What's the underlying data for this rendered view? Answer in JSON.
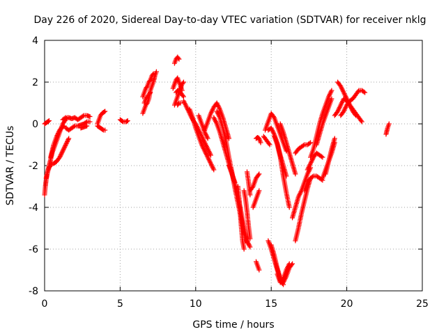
{
  "chart_data": {
    "type": "scatter",
    "title": "Day 226 of 2020, Sidereal Day-to-day VTEC variation (SDTVAR) for receiver nklg",
    "xlabel": "GPS time / hours",
    "ylabel": "SDTVAR / TECUs",
    "xlim": [
      0,
      25
    ],
    "ylim": [
      -8,
      4
    ],
    "xticks": [
      0,
      5,
      10,
      15,
      20,
      25
    ],
    "yticks": [
      -8,
      -6,
      -4,
      -2,
      0,
      2,
      4
    ],
    "xtick_labels": [
      "0",
      "5",
      "10",
      "15",
      "20",
      "25"
    ],
    "ytick_labels": [
      "-8",
      "-6",
      "-4",
      "-2",
      "0",
      "2",
      "4"
    ],
    "grid": true,
    "marker": "plus",
    "color": "#ff0000",
    "segments": [
      [
        [
          0.0,
          0.0
        ],
        [
          0.1,
          0.05
        ],
        [
          0.2,
          0.1
        ],
        [
          0.3,
          0.15
        ]
      ],
      [
        [
          0.0,
          -3.4
        ],
        [
          0.05,
          -3.0
        ],
        [
          0.1,
          -2.7
        ],
        [
          0.15,
          -2.5
        ],
        [
          0.2,
          -2.3
        ],
        [
          0.3,
          -2.0
        ],
        [
          0.4,
          -1.7
        ],
        [
          0.5,
          -1.4
        ],
        [
          0.6,
          -1.2
        ],
        [
          0.7,
          -1.0
        ],
        [
          0.8,
          -0.8
        ],
        [
          0.9,
          -0.6
        ],
        [
          1.0,
          -0.4
        ],
        [
          1.1,
          -0.2
        ],
        [
          1.2,
          0.0
        ],
        [
          1.3,
          0.1
        ],
        [
          1.4,
          0.2
        ],
        [
          1.5,
          0.3
        ]
      ],
      [
        [
          0.1,
          -2.6
        ],
        [
          0.2,
          -2.3
        ],
        [
          0.3,
          -2.1
        ],
        [
          0.4,
          -2.0
        ],
        [
          0.5,
          -1.9
        ],
        [
          0.6,
          -1.9
        ],
        [
          0.7,
          -1.85
        ],
        [
          0.8,
          -1.8
        ],
        [
          0.9,
          -1.7
        ],
        [
          1.0,
          -1.6
        ],
        [
          1.1,
          -1.45
        ],
        [
          1.2,
          -1.3
        ],
        [
          1.3,
          -1.15
        ],
        [
          1.4,
          -1.0
        ],
        [
          1.5,
          -0.85
        ],
        [
          1.6,
          -0.7
        ]
      ],
      [
        [
          0.4,
          -1.6
        ],
        [
          0.5,
          -1.3
        ],
        [
          0.6,
          -1.0
        ],
        [
          0.7,
          -0.8
        ],
        [
          0.8,
          -0.6
        ],
        [
          0.9,
          -0.45
        ],
        [
          1.0,
          -0.3
        ],
        [
          1.1,
          -0.2
        ],
        [
          1.2,
          -0.15
        ],
        [
          1.3,
          -0.1
        ]
      ],
      [
        [
          1.2,
          0.2
        ],
        [
          1.4,
          0.3
        ],
        [
          1.6,
          0.3
        ],
        [
          1.8,
          0.25
        ],
        [
          2.0,
          0.3
        ],
        [
          2.2,
          0.2
        ],
        [
          2.4,
          0.3
        ],
        [
          2.6,
          0.4
        ],
        [
          2.8,
          0.4
        ],
        [
          3.0,
          0.35
        ]
      ],
      [
        [
          1.4,
          -0.2
        ],
        [
          1.6,
          -0.3
        ],
        [
          1.8,
          -0.2
        ],
        [
          2.0,
          -0.1
        ],
        [
          2.2,
          -0.1
        ],
        [
          2.4,
          -0.05
        ],
        [
          2.6,
          0.0
        ],
        [
          2.8,
          0.1
        ],
        [
          3.0,
          0.1
        ]
      ],
      [
        [
          2.4,
          -0.2
        ],
        [
          2.6,
          -0.15
        ],
        [
          2.8,
          -0.1
        ]
      ],
      [
        [
          3.5,
          0.0
        ],
        [
          3.6,
          0.2
        ],
        [
          3.7,
          0.4
        ],
        [
          3.8,
          0.5
        ],
        [
          3.9,
          0.55
        ],
        [
          4.0,
          0.6
        ]
      ],
      [
        [
          3.5,
          -0.1
        ],
        [
          3.6,
          -0.15
        ],
        [
          3.7,
          -0.2
        ],
        [
          3.8,
          -0.25
        ],
        [
          3.9,
          -0.3
        ],
        [
          4.0,
          -0.3
        ]
      ],
      [
        [
          5.0,
          0.2
        ],
        [
          5.1,
          0.15
        ],
        [
          5.2,
          0.1
        ],
        [
          5.3,
          0.1
        ],
        [
          5.4,
          0.1
        ],
        [
          5.5,
          0.15
        ]
      ],
      [
        [
          6.5,
          0.5
        ],
        [
          6.6,
          0.7
        ],
        [
          6.7,
          0.9
        ],
        [
          6.8,
          1.0
        ],
        [
          6.9,
          1.2
        ],
        [
          7.0,
          1.6
        ],
        [
          7.1,
          1.8
        ],
        [
          7.2,
          2.0
        ],
        [
          7.3,
          2.3
        ],
        [
          7.4,
          2.5
        ]
      ],
      [
        [
          6.5,
          1.3
        ],
        [
          6.6,
          1.5
        ],
        [
          6.7,
          1.7
        ],
        [
          6.8,
          1.8
        ],
        [
          6.9,
          2.0
        ],
        [
          7.0,
          2.1
        ],
        [
          7.1,
          2.3
        ],
        [
          7.2,
          2.4
        ]
      ],
      [
        [
          6.6,
          1.0
        ],
        [
          6.7,
          1.2
        ],
        [
          6.8,
          1.3
        ],
        [
          6.9,
          1.4
        ],
        [
          7.0,
          1.5
        ]
      ],
      [
        [
          8.5,
          1.7
        ],
        [
          8.6,
          1.9
        ],
        [
          8.7,
          2.1
        ],
        [
          8.8,
          2.2
        ],
        [
          8.9,
          2.0
        ],
        [
          9.0,
          1.8
        ],
        [
          9.1,
          1.6
        ]
      ],
      [
        [
          8.6,
          2.9
        ],
        [
          8.7,
          3.1
        ],
        [
          8.8,
          3.2
        ],
        [
          8.9,
          3.1
        ]
      ],
      [
        [
          8.6,
          0.9
        ],
        [
          8.7,
          1.1
        ],
        [
          8.8,
          1.3
        ],
        [
          8.9,
          1.5
        ],
        [
          9.0,
          1.7
        ],
        [
          9.1,
          1.9
        ],
        [
          9.2,
          2.0
        ]
      ],
      [
        [
          8.7,
          1.5
        ],
        [
          8.8,
          1.6
        ],
        [
          9.0,
          1.5
        ],
        [
          9.2,
          1.3
        ]
      ],
      [
        [
          8.8,
          0.9
        ],
        [
          8.9,
          1.0
        ],
        [
          9.0,
          1.0
        ]
      ],
      [
        [
          9.2,
          1.1
        ],
        [
          9.4,
          0.8
        ],
        [
          9.6,
          0.5
        ],
        [
          9.8,
          0.2
        ],
        [
          10.0,
          0.0
        ],
        [
          10.2,
          -0.3
        ],
        [
          10.4,
          -0.6
        ],
        [
          10.6,
          -0.9
        ],
        [
          10.8,
          -1.2
        ],
        [
          11.0,
          -1.5
        ]
      ],
      [
        [
          9.6,
          0.7
        ],
        [
          9.8,
          0.3
        ],
        [
          10.0,
          -0.2
        ],
        [
          10.2,
          -0.6
        ],
        [
          10.4,
          -1.0
        ],
        [
          10.6,
          -1.3
        ],
        [
          10.8,
          -1.6
        ],
        [
          11.0,
          -1.9
        ],
        [
          11.2,
          -2.2
        ]
      ],
      [
        [
          10.2,
          0.4
        ],
        [
          10.4,
          0.0
        ],
        [
          10.6,
          -0.4
        ],
        [
          10.8,
          -0.7
        ]
      ],
      [
        [
          10.6,
          -0.3
        ],
        [
          10.8,
          0.1
        ],
        [
          11.0,
          0.5
        ],
        [
          11.2,
          0.8
        ],
        [
          11.4,
          1.0
        ],
        [
          11.6,
          0.7
        ],
        [
          11.8,
          0.3
        ],
        [
          12.0,
          -0.2
        ],
        [
          12.2,
          -0.7
        ]
      ],
      [
        [
          11.2,
          0.3
        ],
        [
          11.4,
          0.0
        ],
        [
          11.6,
          -0.4
        ],
        [
          11.8,
          -0.9
        ],
        [
          12.0,
          -1.4
        ],
        [
          12.2,
          -1.9
        ],
        [
          12.4,
          -2.4
        ],
        [
          12.6,
          -2.8
        ]
      ],
      [
        [
          11.4,
          0.6
        ],
        [
          11.6,
          0.3
        ],
        [
          11.8,
          -0.2
        ],
        [
          12.0,
          -0.8
        ],
        [
          12.2,
          -1.6
        ],
        [
          12.4,
          -2.3
        ],
        [
          12.6,
          -3.1
        ],
        [
          12.8,
          -3.8
        ],
        [
          13.0,
          -4.5
        ],
        [
          13.2,
          -5.2
        ],
        [
          13.4,
          -5.7
        ]
      ],
      [
        [
          12.2,
          -2.0
        ],
        [
          12.4,
          -2.4
        ],
        [
          12.6,
          -2.9
        ],
        [
          12.8,
          -3.5
        ],
        [
          13.0,
          -4.2
        ],
        [
          13.2,
          -5.0
        ],
        [
          13.4,
          -5.6
        ],
        [
          13.6,
          -5.9
        ]
      ],
      [
        [
          12.8,
          -3.0
        ],
        [
          12.9,
          -3.8
        ],
        [
          13.0,
          -4.8
        ],
        [
          13.1,
          -5.6
        ],
        [
          13.2,
          -6.0
        ]
      ],
      [
        [
          13.2,
          -3.2
        ],
        [
          13.3,
          -3.6
        ],
        [
          13.4,
          -4.2
        ],
        [
          13.5,
          -4.9
        ],
        [
          13.6,
          -5.5
        ]
      ],
      [
        [
          13.4,
          -2.3
        ],
        [
          13.5,
          -2.8
        ],
        [
          13.6,
          -3.4
        ]
      ],
      [
        [
          13.6,
          -3.2
        ],
        [
          13.8,
          -3.0
        ],
        [
          14.0,
          -2.6
        ],
        [
          14.2,
          -2.4
        ]
      ],
      [
        [
          13.8,
          -4.0
        ],
        [
          14.0,
          -3.6
        ],
        [
          14.2,
          -3.2
        ]
      ],
      [
        [
          14.0,
          -6.6
        ],
        [
          14.1,
          -6.8
        ],
        [
          14.2,
          -7.0
        ]
      ],
      [
        [
          14.0,
          -0.7
        ],
        [
          14.1,
          -0.65
        ],
        [
          14.2,
          -0.7
        ],
        [
          14.3,
          -0.9
        ]
      ],
      [
        [
          14.5,
          -0.6
        ],
        [
          14.6,
          -0.7
        ],
        [
          14.7,
          -0.8
        ],
        [
          14.8,
          -0.9
        ],
        [
          14.9,
          -1.0
        ]
      ],
      [
        [
          14.6,
          -0.3
        ],
        [
          14.8,
          0.1
        ],
        [
          15.0,
          0.5
        ],
        [
          15.2,
          0.3
        ],
        [
          15.4,
          -0.1
        ],
        [
          15.6,
          -0.5
        ],
        [
          15.8,
          -0.9
        ],
        [
          16.0,
          -1.3
        ]
      ],
      [
        [
          14.8,
          -0.3
        ],
        [
          15.0,
          -0.2
        ],
        [
          15.2,
          -0.5
        ],
        [
          15.4,
          -0.9
        ],
        [
          15.6,
          -1.5
        ],
        [
          15.8,
          -2.0
        ],
        [
          16.0,
          -2.5
        ]
      ],
      [
        [
          15.2,
          -0.6
        ],
        [
          15.4,
          -1.0
        ],
        [
          15.6,
          -1.6
        ],
        [
          15.8,
          -2.5
        ],
        [
          16.0,
          -3.3
        ],
        [
          16.2,
          -4.0
        ]
      ],
      [
        [
          15.6,
          0.0
        ],
        [
          15.8,
          -0.4
        ],
        [
          16.0,
          -0.9
        ],
        [
          16.2,
          -1.4
        ],
        [
          16.4,
          -1.9
        ],
        [
          16.6,
          -2.4
        ]
      ],
      [
        [
          14.8,
          -5.6
        ],
        [
          15.0,
          -6.0
        ],
        [
          15.2,
          -6.5
        ],
        [
          15.4,
          -7.0
        ],
        [
          15.6,
          -7.5
        ],
        [
          15.8,
          -7.7
        ]
      ],
      [
        [
          15.0,
          -5.8
        ],
        [
          15.2,
          -6.3
        ],
        [
          15.4,
          -6.9
        ],
        [
          15.6,
          -7.4
        ],
        [
          15.8,
          -7.6
        ],
        [
          16.0,
          -7.3
        ],
        [
          16.2,
          -6.9
        ],
        [
          16.4,
          -6.7
        ]
      ],
      [
        [
          15.4,
          -7.2
        ],
        [
          15.6,
          -7.6
        ],
        [
          15.8,
          -7.4
        ],
        [
          16.0,
          -7.0
        ],
        [
          16.2,
          -6.7
        ]
      ],
      [
        [
          16.4,
          -4.5
        ],
        [
          16.6,
          -4.0
        ],
        [
          16.8,
          -3.5
        ],
        [
          17.0,
          -3.2
        ],
        [
          17.2,
          -2.8
        ],
        [
          17.4,
          -2.4
        ],
        [
          17.6,
          -2.1
        ]
      ],
      [
        [
          16.6,
          -5.6
        ],
        [
          16.8,
          -5.0
        ],
        [
          17.0,
          -4.3
        ],
        [
          17.2,
          -3.7
        ],
        [
          17.4,
          -3.1
        ],
        [
          17.6,
          -2.6
        ]
      ],
      [
        [
          16.6,
          -1.4
        ],
        [
          16.8,
          -1.2
        ],
        [
          17.0,
          -1.1
        ],
        [
          17.2,
          -1.0
        ],
        [
          17.4,
          -1.0
        ],
        [
          17.6,
          -0.9
        ]
      ],
      [
        [
          17.2,
          -3.2
        ],
        [
          17.4,
          -2.8
        ],
        [
          17.6,
          -2.6
        ],
        [
          17.8,
          -2.5
        ],
        [
          18.0,
          -2.5
        ],
        [
          18.2,
          -2.6
        ],
        [
          18.4,
          -2.7
        ]
      ],
      [
        [
          17.4,
          -2.2
        ],
        [
          17.6,
          -1.9
        ],
        [
          17.8,
          -1.6
        ],
        [
          18.0,
          -1.4
        ],
        [
          18.2,
          -1.5
        ],
        [
          18.4,
          -1.6
        ]
      ],
      [
        [
          17.6,
          -1.6
        ],
        [
          17.8,
          -1.2
        ],
        [
          18.0,
          -0.6
        ],
        [
          18.2,
          0.0
        ],
        [
          18.4,
          0.5
        ],
        [
          18.6,
          0.9
        ],
        [
          18.8,
          1.3
        ],
        [
          19.0,
          1.6
        ]
      ],
      [
        [
          18.0,
          -1.0
        ],
        [
          18.2,
          -0.5
        ],
        [
          18.4,
          0.0
        ],
        [
          18.6,
          0.4
        ],
        [
          18.8,
          0.8
        ],
        [
          19.0,
          1.2
        ]
      ],
      [
        [
          18.4,
          -2.6
        ],
        [
          18.6,
          -2.2
        ],
        [
          18.8,
          -1.8
        ],
        [
          19.0,
          -1.4
        ],
        [
          19.2,
          -0.9
        ]
      ],
      [
        [
          18.6,
          -2.4
        ],
        [
          18.8,
          -1.8
        ],
        [
          19.0,
          -1.2
        ],
        [
          19.2,
          -0.7
        ]
      ],
      [
        [
          19.2,
          0.4
        ],
        [
          19.4,
          0.6
        ],
        [
          19.6,
          0.9
        ],
        [
          19.8,
          1.2
        ],
        [
          20.0,
          1.1
        ],
        [
          20.2,
          0.9
        ],
        [
          20.4,
          0.7
        ],
        [
          20.6,
          0.5
        ],
        [
          20.8,
          0.3
        ],
        [
          21.0,
          0.1
        ]
      ],
      [
        [
          19.4,
          2.0
        ],
        [
          19.6,
          1.8
        ],
        [
          19.8,
          1.5
        ],
        [
          20.0,
          1.2
        ],
        [
          20.2,
          0.9
        ],
        [
          20.4,
          0.6
        ],
        [
          20.6,
          0.4
        ]
      ],
      [
        [
          19.6,
          0.4
        ],
        [
          19.8,
          0.6
        ],
        [
          20.0,
          0.9
        ],
        [
          20.2,
          1.1
        ],
        [
          20.4,
          1.2
        ],
        [
          20.6,
          1.4
        ],
        [
          20.8,
          1.6
        ],
        [
          21.0,
          1.6
        ],
        [
          21.2,
          1.5
        ]
      ],
      [
        [
          22.6,
          -0.5
        ],
        [
          22.7,
          -0.2
        ],
        [
          22.8,
          0.0
        ]
      ]
    ]
  }
}
